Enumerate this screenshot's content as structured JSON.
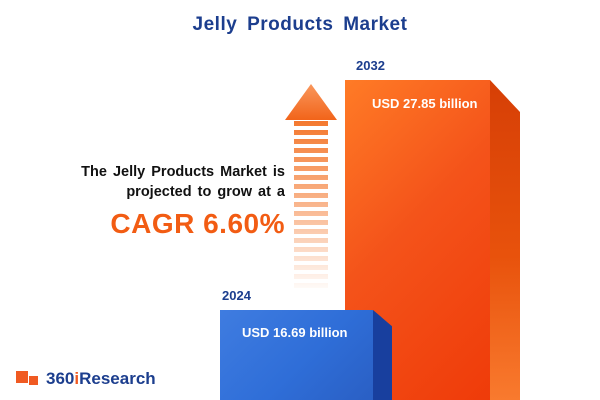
{
  "title": "Jelly Products Market",
  "annotation": {
    "line1": "The Jelly Products Market is",
    "line2": "projected to grow at a",
    "cagr": "CAGR 6.60%"
  },
  "logo": {
    "part1": "360",
    "part2": "i",
    "part3": "Research"
  },
  "colors": {
    "title_navy": "#1c3e8e",
    "bar_2032_orange": "#f4531a",
    "bar_2032_side": "#e8520c",
    "bar_2024_blue": "#2f6ed8",
    "bar_2024_side": "#183f9e",
    "cagr_orange": "#f25c13",
    "arrow_orange": "#f4792f",
    "logo_orange": "#f05a22"
  },
  "chart_data": {
    "type": "bar",
    "title": "Jelly Products Market",
    "categories": [
      "2024",
      "2032"
    ],
    "values": [
      16.69,
      27.85
    ],
    "unit": "USD billion",
    "value_labels": [
      "USD 16.69 billion",
      "USD 27.85 billion"
    ],
    "growth_rate": "CAGR 6.60%",
    "orientation": "vertical",
    "grid": false,
    "legend_position": "none"
  }
}
